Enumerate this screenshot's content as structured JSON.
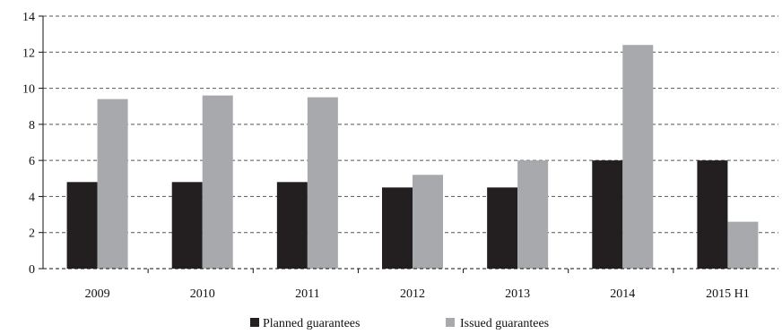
{
  "chart_data": {
    "type": "bar",
    "categories": [
      "2009",
      "2010",
      "2011",
      "2012",
      "2013",
      "2014",
      "2015 H1"
    ],
    "series": [
      {
        "name": "Planned guarantees",
        "values": [
          4.8,
          4.8,
          4.8,
          4.5,
          4.5,
          6.0,
          6.0
        ],
        "color": "#231f20"
      },
      {
        "name": "Issued guarantees",
        "values": [
          9.4,
          9.6,
          9.5,
          5.2,
          6.0,
          12.4,
          2.6
        ],
        "color": "#a7a9ac"
      }
    ],
    "yticks": [
      "0",
      "2",
      "4",
      "6",
      "8",
      "10",
      "12",
      "14"
    ],
    "ylim": [
      0,
      14
    ],
    "grid": true,
    "grid_style": "dashed",
    "legend_position": "bottom-center",
    "title": "",
    "xlabel": "",
    "ylabel": ""
  }
}
